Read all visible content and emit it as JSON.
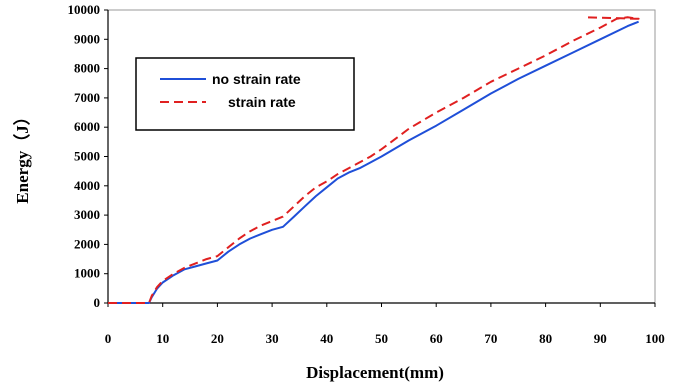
{
  "chart_data": {
    "type": "line",
    "xlabel": "Displacement(mm)",
    "ylabel": "Energy（J）",
    "xlim": [
      0,
      100
    ],
    "ylim": [
      0,
      10000
    ],
    "xticks": [
      0,
      10,
      20,
      30,
      40,
      50,
      60,
      70,
      80,
      90,
      100
    ],
    "yticks": [
      0,
      1000,
      2000,
      3000,
      4000,
      5000,
      6000,
      7000,
      8000,
      9000,
      10000
    ],
    "grid": false,
    "legend_position": "top-left",
    "series": [
      {
        "name": "no strain rate",
        "color": "#1f4fd8",
        "style": "solid",
        "x": [
          0,
          7.5,
          8,
          9,
          10,
          12,
          14,
          16,
          18,
          20,
          22,
          24,
          26,
          28,
          30,
          32,
          34,
          36,
          38,
          40,
          42,
          44,
          46,
          48,
          50,
          55,
          60,
          65,
          70,
          75,
          80,
          85,
          90,
          95,
          97
        ],
        "y": [
          0,
          0,
          200,
          500,
          700,
          950,
          1150,
          1250,
          1350,
          1450,
          1750,
          2000,
          2200,
          2350,
          2500,
          2600,
          2950,
          3300,
          3650,
          3950,
          4250,
          4450,
          4600,
          4800,
          5000,
          5550,
          6050,
          6600,
          7150,
          7650,
          8100,
          8550,
          9000,
          9450,
          9600
        ]
      },
      {
        "name": "strain rate",
        "color": "#e02020",
        "style": "dashed",
        "x": [
          0,
          7.5,
          8,
          9,
          10,
          12,
          14,
          16,
          18,
          20,
          22,
          24,
          26,
          28,
          30,
          32,
          34,
          36,
          38,
          40,
          42,
          44,
          46,
          48,
          50,
          55,
          60,
          65,
          70,
          75,
          80,
          85,
          90,
          93,
          95,
          97,
          87
        ],
        "y": [
          0,
          0,
          250,
          550,
          750,
          1000,
          1200,
          1350,
          1500,
          1600,
          1900,
          2200,
          2450,
          2650,
          2800,
          2950,
          3300,
          3650,
          3950,
          4150,
          4400,
          4600,
          4800,
          5000,
          5250,
          5950,
          6500,
          7000,
          7550,
          8000,
          8450,
          8950,
          9400,
          9700,
          9750,
          9700,
          9750
        ]
      }
    ]
  }
}
